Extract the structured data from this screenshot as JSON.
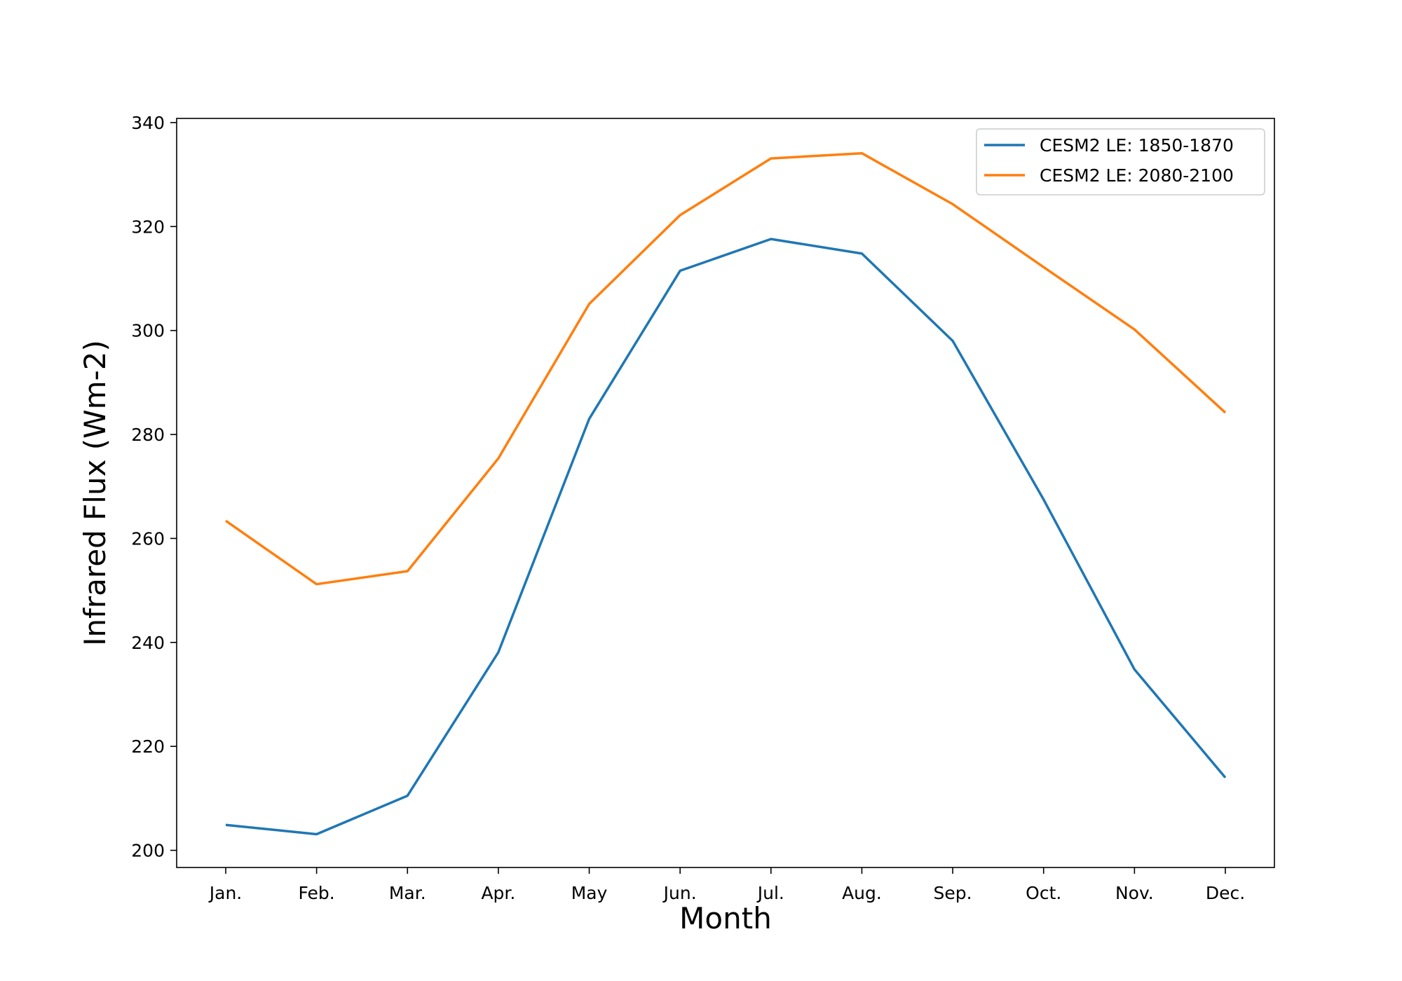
{
  "chart_data": {
    "type": "line",
    "title": "",
    "xlabel": "Month",
    "ylabel": "Infrared Flux (Wm-2)",
    "categories": [
      "Jan.",
      "Feb.",
      "Mar.",
      "Apr.",
      "May",
      "Jun.",
      "Jul.",
      "Aug.",
      "Sep.",
      "Oct.",
      "Nov.",
      "Dec."
    ],
    "ylim": [
      196.7,
      340.8
    ],
    "yticks": [
      200,
      220,
      240,
      260,
      280,
      300,
      320,
      340
    ],
    "grid": false,
    "legend_position": "top-right",
    "series": [
      {
        "name": "CESM2 LE: 1850-1870",
        "color": "#1f77b4",
        "values": [
          204.9,
          203.1,
          210.5,
          238.1,
          283.0,
          311.5,
          317.6,
          314.8,
          298.0,
          267.5,
          234.8,
          214.0
        ]
      },
      {
        "name": "CESM2 LE: 2080-2100",
        "color": "#ff7f0e",
        "values": [
          263.4,
          251.2,
          253.7,
          275.4,
          305.1,
          322.2,
          333.1,
          334.1,
          324.3,
          312.2,
          300.2,
          284.2
        ]
      }
    ]
  }
}
